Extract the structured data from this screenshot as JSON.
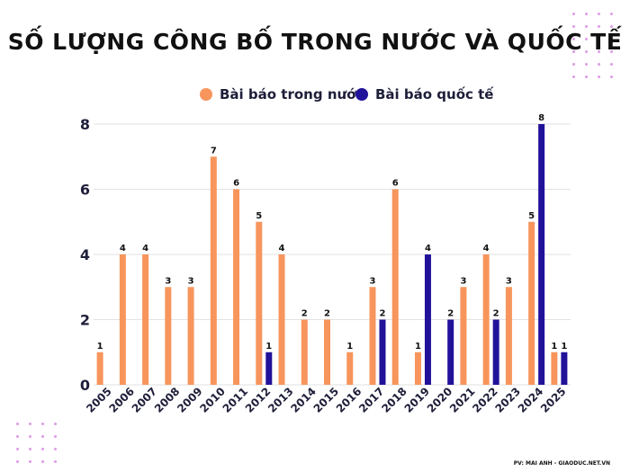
{
  "title": "SỐ LƯỢNG CÔNG BỐ TRONG NƯỚC VÀ QUỐC TẾ",
  "credit": "PV: MAI ANH - GIAODUC.NET.VN",
  "colors": {
    "domestic": "#f7955c",
    "international": "#21129a",
    "grid": "#e2e2e2",
    "text": "#1e1e3a",
    "decor_dots": "#dd9be6"
  },
  "chart_data": {
    "type": "bar",
    "categories": [
      "2005",
      "2006",
      "2007",
      "2008",
      "2009",
      "2010",
      "2011",
      "2012",
      "2013",
      "2014",
      "2015",
      "2016",
      "2017",
      "2018",
      "2019",
      "2020",
      "2021",
      "2022",
      "2023",
      "2024",
      "2025"
    ],
    "series": [
      {
        "name": "Bài báo trong nước",
        "values": [
          1,
          4,
          4,
          3,
          3,
          7,
          6,
          5,
          4,
          2,
          2,
          1,
          3,
          6,
          1,
          null,
          3,
          4,
          3,
          5,
          1
        ]
      },
      {
        "name": "Bài báo quốc tế",
        "values": [
          null,
          null,
          null,
          null,
          null,
          null,
          null,
          1,
          null,
          null,
          null,
          null,
          2,
          null,
          4,
          2,
          null,
          2,
          null,
          8,
          1
        ]
      }
    ],
    "ylim": [
      0,
      8
    ],
    "yticks": [
      0,
      2,
      4,
      6,
      8
    ],
    "grid": true,
    "legend": "top-center"
  }
}
